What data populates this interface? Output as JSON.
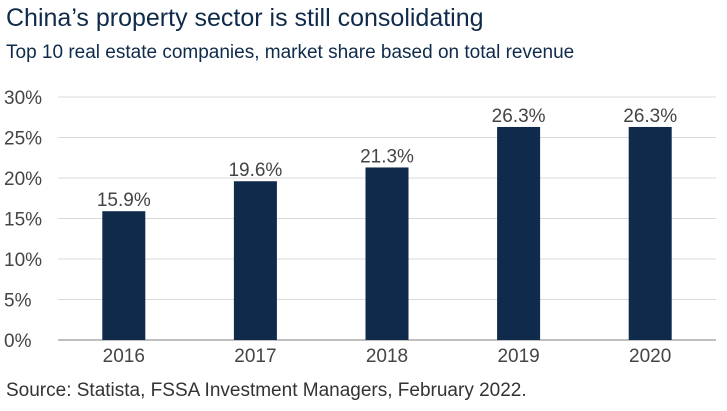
{
  "title": "China’s property sector is still consolidating",
  "subtitle": "Top 10 real estate companies, market share based on total revenue",
  "source": "Source: Statista, FSSA Investment Managers, February 2022.",
  "colors": {
    "bar": "#0f2a4a",
    "grid": "#d9d9d9",
    "axis": "#999999"
  },
  "chart_data": {
    "type": "bar",
    "categories": [
      "2016",
      "2017",
      "2018",
      "2019",
      "2020"
    ],
    "values": [
      15.9,
      19.6,
      21.3,
      26.3,
      26.3
    ],
    "data_labels": [
      "15.9%",
      "19.6%",
      "21.3%",
      "26.3%",
      "26.3%"
    ],
    "yticks": [
      0,
      5,
      10,
      15,
      20,
      25,
      30
    ],
    "ytick_labels": [
      "0%",
      "5%",
      "10%",
      "15%",
      "20%",
      "25%",
      "30%"
    ],
    "ylim": [
      0,
      30
    ],
    "grid": true,
    "legend": "none",
    "xlabel": "",
    "ylabel": ""
  }
}
